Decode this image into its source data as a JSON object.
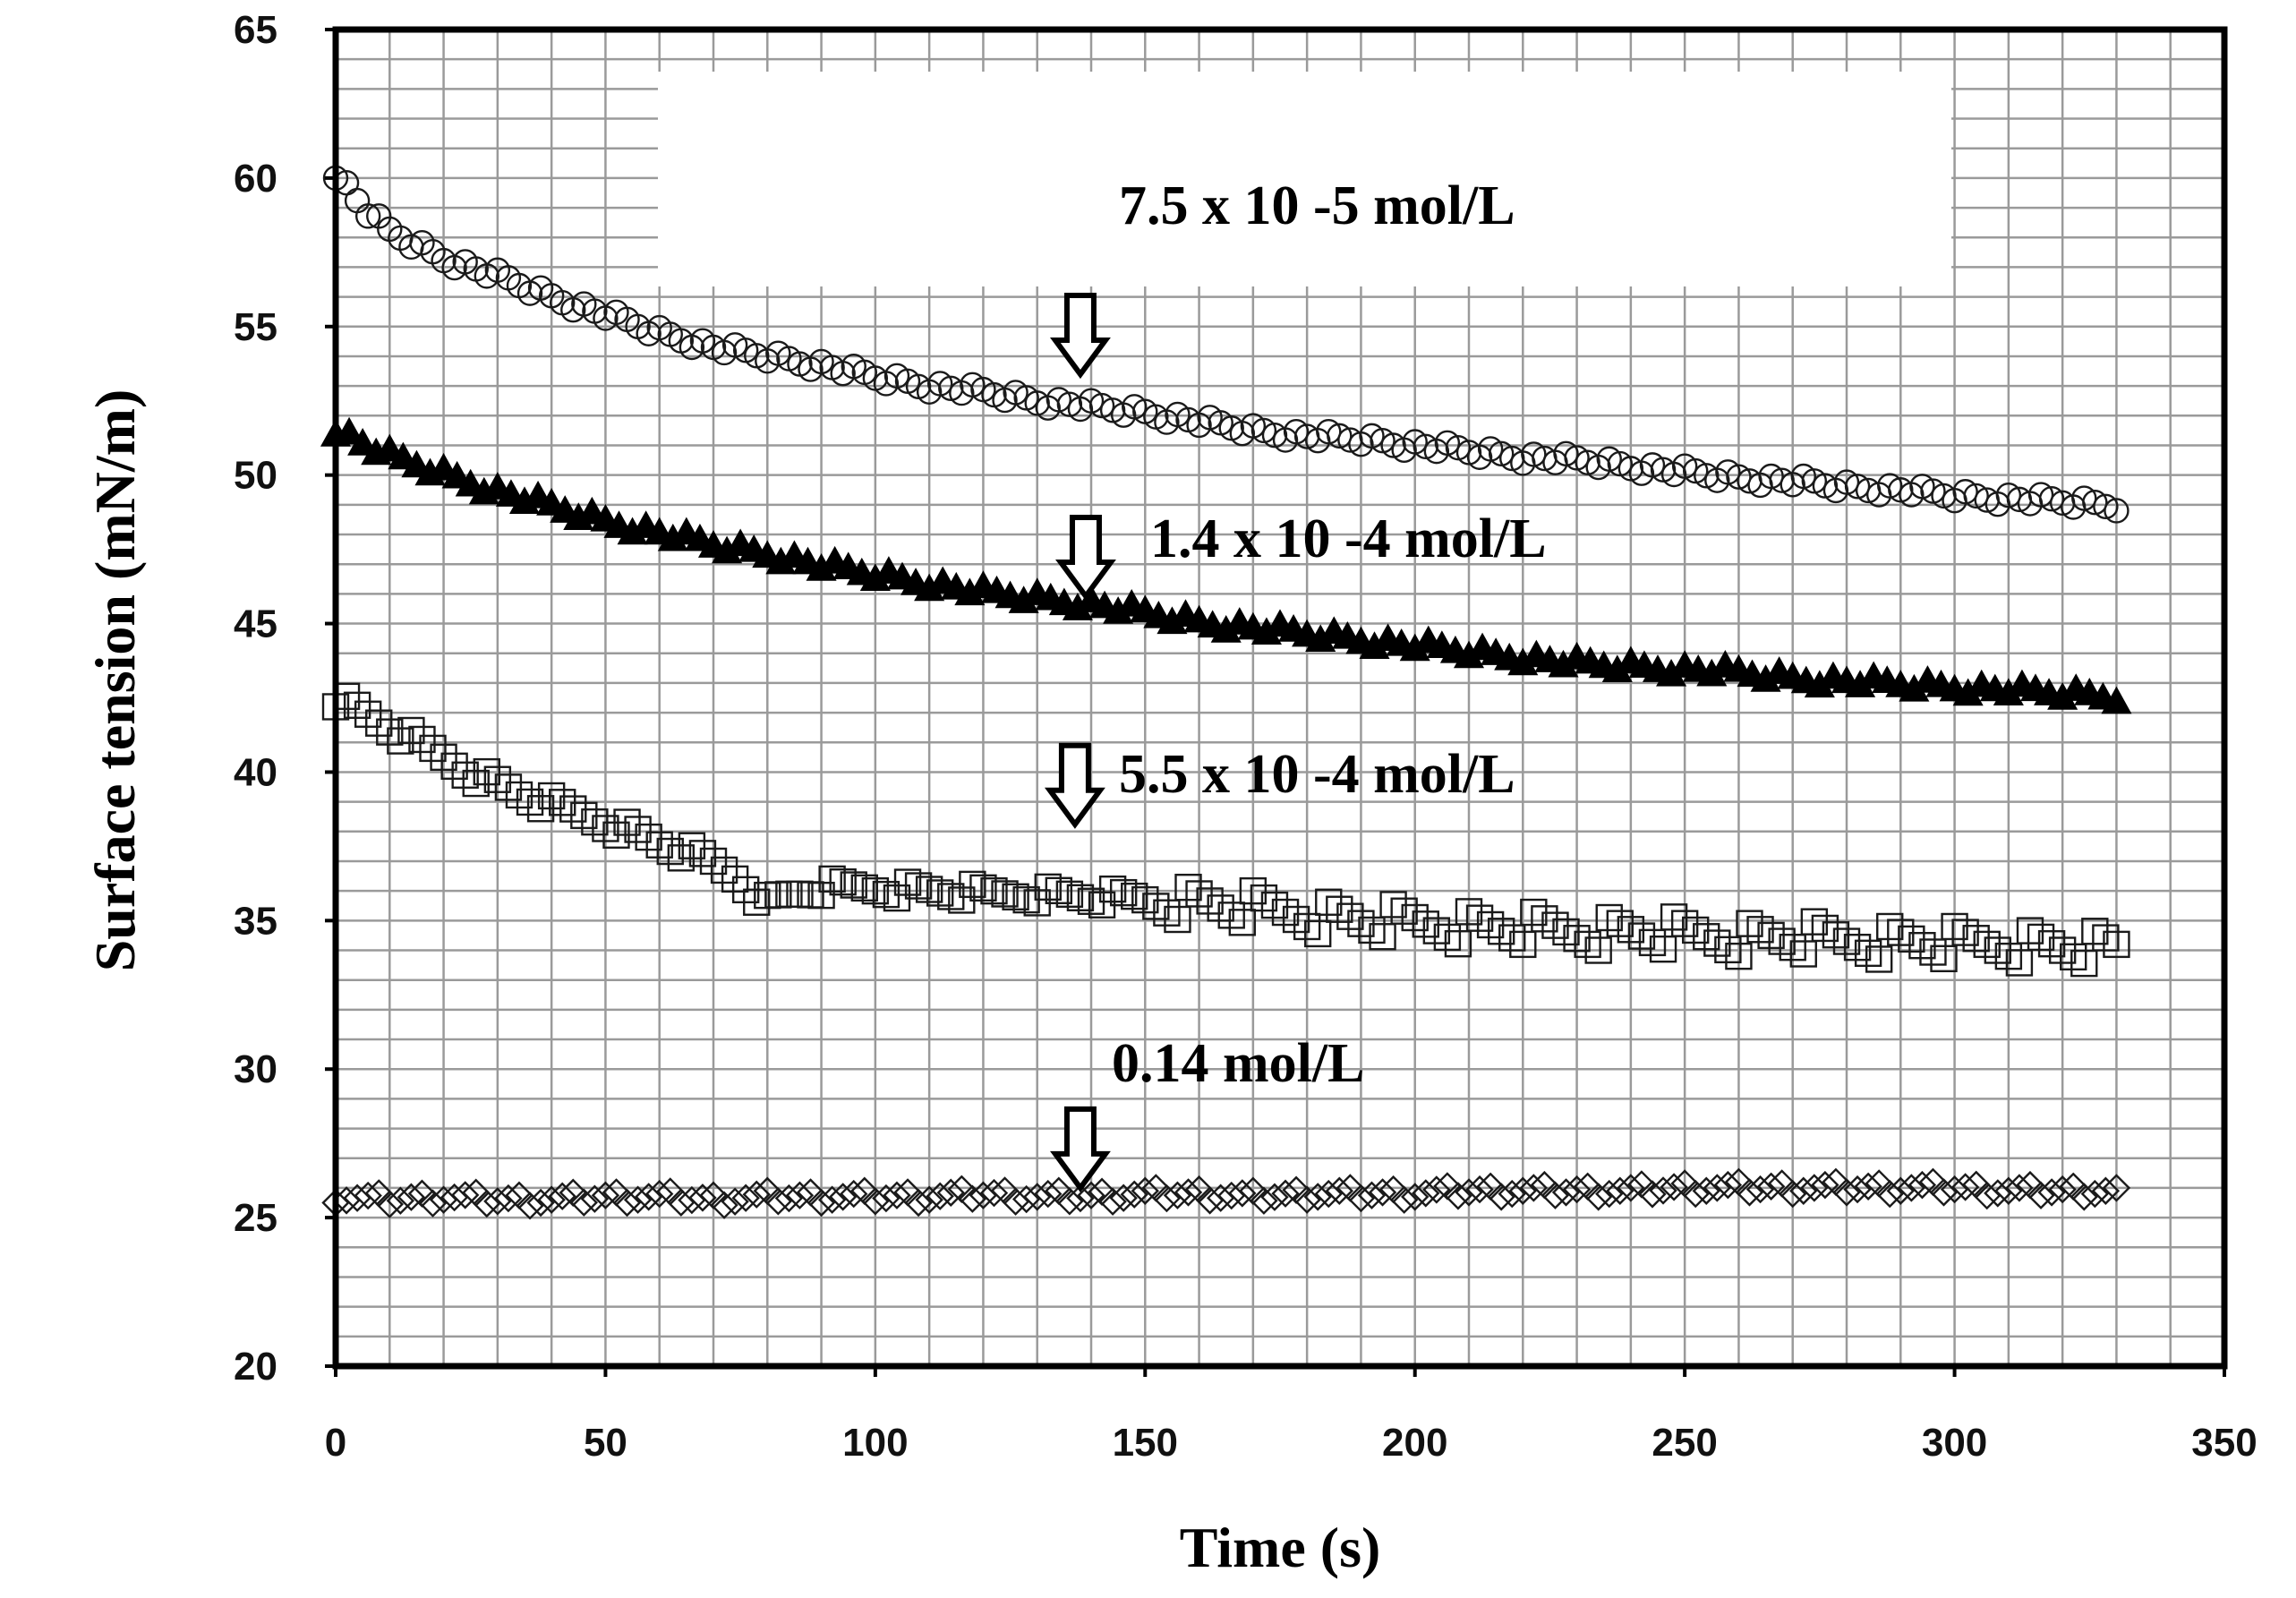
{
  "chart_data": {
    "type": "scatter",
    "title": "",
    "xlabel": "Time (s)",
    "ylabel": "Surface tension (mN/m)",
    "xlim": [
      0,
      350
    ],
    "ylim": [
      20,
      65
    ],
    "xticks": [
      "0",
      "50",
      "100",
      "150",
      "200",
      "250",
      "300",
      "350"
    ],
    "yticks": [
      "20",
      "25",
      "30",
      "35",
      "40",
      "45",
      "50",
      "55",
      "60",
      "65"
    ],
    "grid": true,
    "series": [
      {
        "name": "7.5 x 10 -5 mol/L",
        "label": "7.5 x 10 -5 mol/L",
        "marker": "circle",
        "arrow_x": 138,
        "x": [
          0,
          5,
          10,
          20,
          30,
          40,
          50,
          60,
          70,
          80,
          90,
          100,
          110,
          120,
          130,
          140,
          150,
          160,
          170,
          180,
          190,
          200,
          210,
          220,
          230,
          240,
          250,
          260,
          270,
          280,
          290,
          300,
          310,
          320,
          330
        ],
        "values": [
          60.2,
          59.0,
          58.2,
          57.3,
          56.7,
          56.0,
          55.4,
          54.8,
          54.3,
          54.0,
          53.7,
          53.3,
          53.0,
          52.8,
          52.5,
          52.3,
          52.1,
          51.8,
          51.5,
          51.3,
          51.2,
          51.0,
          50.8,
          50.6,
          50.5,
          50.3,
          50.1,
          49.9,
          49.8,
          49.6,
          49.5,
          49.3,
          49.2,
          49.1,
          49.0
        ]
      },
      {
        "name": "1.4 x 10 -4 mol/L",
        "label": "1.4 x 10 -4 mol/L",
        "marker": "triangle",
        "arrow_x": 139,
        "x": [
          0,
          5,
          10,
          20,
          30,
          40,
          50,
          60,
          70,
          80,
          90,
          100,
          110,
          120,
          130,
          140,
          150,
          160,
          170,
          180,
          190,
          200,
          210,
          220,
          230,
          240,
          250,
          260,
          270,
          280,
          290,
          300,
          310,
          320,
          330
        ],
        "values": [
          51.5,
          51.0,
          50.6,
          50.0,
          49.4,
          48.9,
          48.4,
          48.0,
          47.6,
          47.3,
          46.9,
          46.6,
          46.3,
          46.0,
          45.8,
          45.6,
          45.3,
          45.0,
          44.8,
          44.6,
          44.4,
          44.2,
          44.0,
          43.8,
          43.6,
          43.5,
          43.4,
          43.3,
          43.1,
          43.0,
          42.9,
          42.8,
          42.7,
          42.6,
          42.5
        ]
      },
      {
        "name": "5.5 x 10 -4 mol/L",
        "label": "5.5 x 10 -4 mol/L",
        "marker": "square",
        "arrow_x": 137,
        "x": [
          0,
          5,
          10,
          15,
          20,
          25,
          30,
          35,
          40,
          45,
          50,
          55,
          60,
          65,
          70,
          75,
          80,
          85,
          90,
          100,
          110,
          120,
          130,
          140,
          150,
          160,
          170,
          180,
          190,
          200,
          210,
          220,
          230,
          240,
          250,
          260,
          270,
          280,
          290,
          300,
          310,
          320,
          330
        ],
        "values": [
          42.5,
          42.0,
          41.5,
          41.0,
          40.5,
          40.0,
          39.6,
          39.2,
          38.9,
          38.6,
          38.3,
          38.0,
          37.6,
          37.3,
          36.9,
          36.4,
          35.6,
          35.9,
          36.1,
          36.1,
          36.0,
          35.9,
          35.9,
          35.8,
          35.7,
          35.6,
          35.4,
          35.2,
          35.0,
          34.9,
          34.8,
          34.7,
          34.6,
          34.6,
          34.5,
          34.4,
          34.4,
          34.3,
          34.3,
          34.2,
          34.2,
          34.1,
          34.0
        ]
      },
      {
        "name": "0.14 mol/L",
        "label": "0.14 mol/L",
        "marker": "diamond",
        "arrow_x": 138,
        "x": [
          0,
          10,
          20,
          30,
          40,
          50,
          60,
          70,
          80,
          90,
          100,
          110,
          120,
          130,
          140,
          150,
          160,
          170,
          180,
          190,
          200,
          210,
          220,
          230,
          240,
          250,
          260,
          270,
          280,
          290,
          300,
          310,
          320,
          330
        ],
        "values": [
          25.7,
          25.6,
          25.7,
          25.6,
          25.6,
          25.7,
          25.7,
          25.6,
          25.7,
          25.7,
          25.7,
          25.7,
          25.8,
          25.7,
          25.7,
          25.8,
          25.8,
          25.7,
          25.8,
          25.8,
          25.8,
          25.9,
          25.9,
          25.9,
          25.9,
          26.0,
          26.0,
          26.0,
          26.0,
          26.0,
          26.0,
          25.9,
          25.9,
          25.9
        ]
      }
    ]
  }
}
